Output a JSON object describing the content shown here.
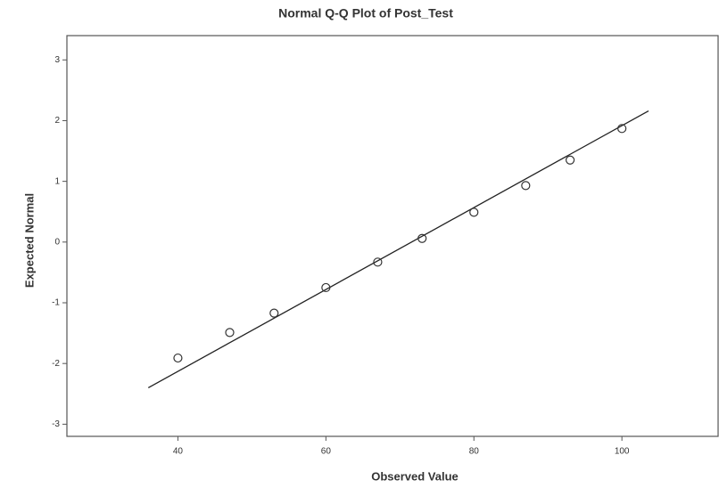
{
  "chart_data": {
    "type": "scatter",
    "title": "Normal Q-Q Plot of Post_Test",
    "xlabel": "Observed Value",
    "ylabel": "Expected Normal",
    "x": [
      40,
      47,
      53,
      60,
      67,
      73,
      80,
      87,
      93,
      100
    ],
    "values": [
      -1.91,
      -1.49,
      -1.17,
      -0.75,
      -0.33,
      0.06,
      0.49,
      0.93,
      1.35,
      1.87
    ],
    "color": "#333333",
    "reference_line": {
      "x": [
        36,
        103.6
      ],
      "values": [
        -2.4,
        2.16
      ],
      "color": "#222222"
    },
    "xlim": [
      25,
      113
    ],
    "ylim": [
      -3.2,
      3.4
    ],
    "xticks": [
      40,
      60,
      80,
      100
    ],
    "yticks": [
      -3,
      -2,
      -1,
      0,
      1,
      2,
      3
    ],
    "grid": false
  }
}
